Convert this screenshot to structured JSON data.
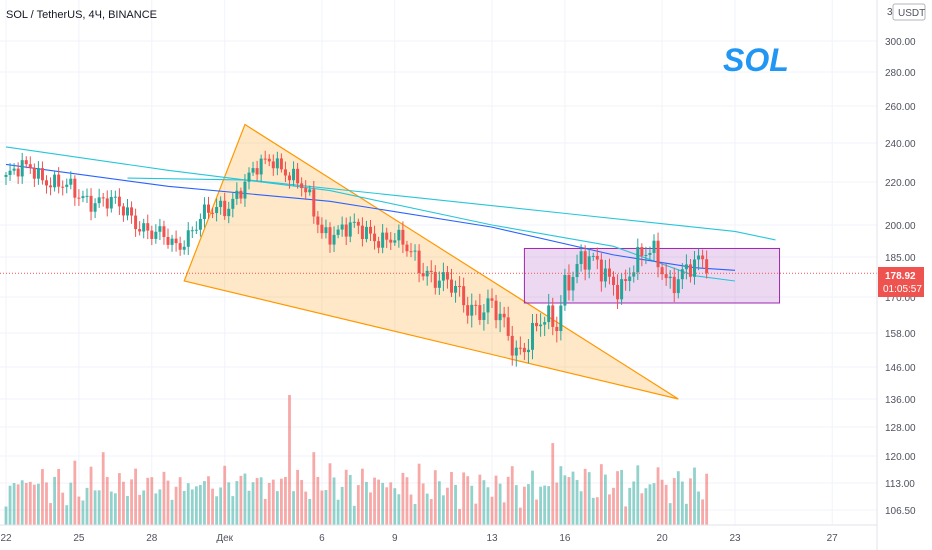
{
  "chart_data": {
    "type": "candlestick",
    "title": "SOL / TetherUS, 4Ч, BINANCE",
    "watermark": "SOL",
    "currency": "USDT",
    "axis_corner_text": "3",
    "current_price": "178.92",
    "countdown": "01:05:57",
    "y_ticks": [
      "300.00",
      "280.00",
      "260.00",
      "240.00",
      "220.00",
      "200.00",
      "185.00",
      "170.00",
      "158.00",
      "146.00",
      "136.00",
      "128.00",
      "120.00",
      "113.00",
      "106.50"
    ],
    "y_tick_values": [
      300,
      280,
      260,
      240,
      220,
      200,
      185,
      170,
      158,
      146,
      136,
      128,
      120,
      113,
      106.5
    ],
    "x_ticks": [
      "22",
      "25",
      "28",
      "Дек",
      "6",
      "9",
      "13",
      "16",
      "20",
      "23",
      "27"
    ],
    "x_tick_index": [
      0,
      18,
      36,
      54,
      78,
      96,
      120,
      138,
      162,
      180,
      204
    ],
    "candle_count": 174,
    "ohlc_anchors": [
      [
        0,
        222
      ],
      [
        6,
        228
      ],
      [
        12,
        219
      ],
      [
        18,
        214
      ],
      [
        24,
        211
      ],
      [
        30,
        206
      ],
      [
        36,
        196
      ],
      [
        42,
        190
      ],
      [
        48,
        203
      ],
      [
        54,
        208
      ],
      [
        58,
        218
      ],
      [
        62,
        226
      ],
      [
        66,
        232
      ],
      [
        70,
        225
      ],
      [
        74,
        214
      ],
      [
        78,
        197
      ],
      [
        84,
        198
      ],
      [
        90,
        196
      ],
      [
        96,
        193
      ],
      [
        102,
        183
      ],
      [
        108,
        175
      ],
      [
        114,
        168
      ],
      [
        120,
        166
      ],
      [
        126,
        152
      ],
      [
        132,
        161
      ],
      [
        136,
        160
      ],
      [
        138,
        176
      ],
      [
        142,
        185
      ],
      [
        148,
        178
      ],
      [
        152,
        175
      ],
      [
        156,
        183
      ],
      [
        160,
        188
      ],
      [
        164,
        176
      ],
      [
        168,
        178
      ],
      [
        172,
        184
      ],
      [
        176,
        178
      ],
      [
        180,
        179.2
      ]
    ],
    "moving_averages": [
      {
        "color": "#26c6da",
        "points": [
          [
            0,
            238
          ],
          [
            40,
            226
          ],
          [
            80,
            216
          ],
          [
            120,
            200
          ],
          [
            150,
            190
          ],
          [
            170,
            178
          ],
          [
            180,
            176
          ]
        ]
      },
      {
        "color": "#2962ff",
        "points": [
          [
            0,
            229
          ],
          [
            40,
            218
          ],
          [
            80,
            211
          ],
          [
            120,
            199
          ],
          [
            150,
            186
          ],
          [
            170,
            181
          ],
          [
            180,
            180
          ]
        ]
      },
      {
        "color": "#26c6da",
        "points": [
          [
            30,
            222
          ],
          [
            60,
            221
          ],
          [
            100,
            213
          ],
          [
            140,
            205
          ],
          [
            180,
            197
          ],
          [
            190,
            193
          ]
        ]
      }
    ],
    "wedge": {
      "color": "#ff9800",
      "points": [
        [
          44,
          176
        ],
        [
          59,
          250
        ],
        [
          166,
          136
        ]
      ]
    },
    "rectangle": {
      "color": "#9c27b0",
      "x0": 128,
      "x1": 191,
      "y0": 168,
      "y1": 189
    },
    "volume_max": 100,
    "up_color": "#26a69a",
    "down_color": "#ef5350"
  }
}
